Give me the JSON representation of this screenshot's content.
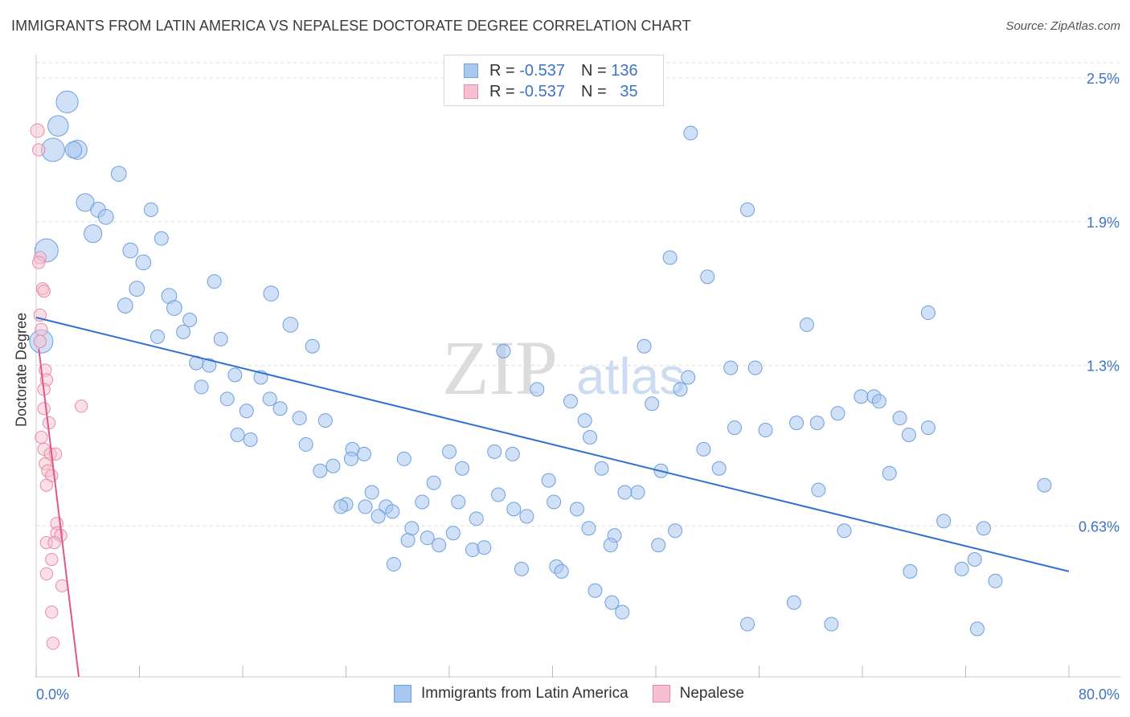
{
  "title": "IMMIGRANTS FROM LATIN AMERICA VS NEPALESE DOCTORATE DEGREE CORRELATION CHART",
  "source": "Source: ZipAtlas.com",
  "watermark": {
    "zip": "ZIP",
    "atlas": "atlas"
  },
  "legend_top": [
    {
      "r_label": "R =",
      "r_value": "-0.537",
      "n_label": "N =",
      "n_value": "136"
    },
    {
      "r_label": "R =",
      "r_value": "-0.537",
      "n_label": "N =",
      "n_value": "35"
    }
  ],
  "chart_data": {
    "type": "scatter",
    "title": "IMMIGRANTS FROM LATIN AMERICA VS NEPALESE DOCTORATE DEGREE CORRELATION CHART",
    "xlabel": "",
    "ylabel": "Doctorate Degree",
    "xlim": [
      0,
      80
    ],
    "ylim": [
      0,
      2.6
    ],
    "x_tick_labels": [
      "0.0%",
      "80.0%"
    ],
    "y_ticks": [
      0.63,
      1.3,
      1.9,
      2.5
    ],
    "y_tick_labels": [
      "0.63%",
      "1.3%",
      "1.9%",
      "2.5%"
    ],
    "grid": true,
    "legend_position": "bottom-center",
    "colors": {
      "latin_fill": "#a9c8f0",
      "latin_stroke": "#6f9fdc",
      "latin_line": "#2f6fcf",
      "nepal_fill": "#f7c0d0",
      "nepal_stroke": "#e88aa6",
      "nepal_line": "#e0578a",
      "grid": "#dddddd",
      "tick_label": "#3d74c8"
    },
    "series": [
      {
        "name": "Immigrants from Latin America",
        "r": -0.537,
        "n": 136,
        "trend": {
          "x": [
            0,
            80
          ],
          "y": [
            1.5,
            0.44
          ]
        },
        "points": [
          {
            "x": 2.4,
            "y": 2.4,
            "s": 16
          },
          {
            "x": 1.3,
            "y": 2.2,
            "s": 17
          },
          {
            "x": 1.7,
            "y": 2.3,
            "s": 15
          },
          {
            "x": 3.2,
            "y": 2.2,
            "s": 14
          },
          {
            "x": 2.9,
            "y": 2.2,
            "s": 12
          },
          {
            "x": 6.4,
            "y": 2.1,
            "s": 11
          },
          {
            "x": 3.8,
            "y": 1.98,
            "s": 13
          },
          {
            "x": 4.8,
            "y": 1.95,
            "s": 11
          },
          {
            "x": 5.4,
            "y": 1.92,
            "s": 11
          },
          {
            "x": 4.4,
            "y": 1.85,
            "s": 13
          },
          {
            "x": 8.9,
            "y": 1.95,
            "s": 10
          },
          {
            "x": 9.7,
            "y": 1.83,
            "s": 10
          },
          {
            "x": 7.3,
            "y": 1.78,
            "s": 11
          },
          {
            "x": 8.3,
            "y": 1.73,
            "s": 11
          },
          {
            "x": 0.8,
            "y": 1.78,
            "s": 17
          },
          {
            "x": 0.4,
            "y": 1.4,
            "s": 17
          },
          {
            "x": 7.8,
            "y": 1.62,
            "s": 11
          },
          {
            "x": 13.8,
            "y": 1.65,
            "s": 10
          },
          {
            "x": 18.2,
            "y": 1.6,
            "s": 11
          },
          {
            "x": 10.3,
            "y": 1.59,
            "s": 11
          },
          {
            "x": 6.9,
            "y": 1.55,
            "s": 11
          },
          {
            "x": 10.7,
            "y": 1.54,
            "s": 11
          },
          {
            "x": 11.9,
            "y": 1.49,
            "s": 10
          },
          {
            "x": 19.7,
            "y": 1.47,
            "s": 11
          },
          {
            "x": 9.4,
            "y": 1.42,
            "s": 10
          },
          {
            "x": 11.4,
            "y": 1.44,
            "s": 10
          },
          {
            "x": 14.3,
            "y": 1.41,
            "s": 10
          },
          {
            "x": 21.4,
            "y": 1.38,
            "s": 10
          },
          {
            "x": 12.4,
            "y": 1.31,
            "s": 10
          },
          {
            "x": 13.4,
            "y": 1.3,
            "s": 10
          },
          {
            "x": 15.4,
            "y": 1.26,
            "s": 10
          },
          {
            "x": 17.4,
            "y": 1.25,
            "s": 10
          },
          {
            "x": 12.8,
            "y": 1.21,
            "s": 10
          },
          {
            "x": 14.8,
            "y": 1.16,
            "s": 10
          },
          {
            "x": 18.1,
            "y": 1.16,
            "s": 10
          },
          {
            "x": 18.9,
            "y": 1.12,
            "s": 10
          },
          {
            "x": 16.3,
            "y": 1.11,
            "s": 10
          },
          {
            "x": 20.4,
            "y": 1.08,
            "s": 10
          },
          {
            "x": 22.4,
            "y": 1.07,
            "s": 10
          },
          {
            "x": 15.6,
            "y": 1.01,
            "s": 10
          },
          {
            "x": 16.6,
            "y": 0.99,
            "s": 10
          },
          {
            "x": 20.9,
            "y": 0.97,
            "s": 10
          },
          {
            "x": 24.5,
            "y": 0.95,
            "s": 10
          },
          {
            "x": 25.4,
            "y": 0.93,
            "s": 10
          },
          {
            "x": 24.4,
            "y": 0.91,
            "s": 10
          },
          {
            "x": 23.0,
            "y": 0.88,
            "s": 10
          },
          {
            "x": 22.0,
            "y": 0.86,
            "s": 10
          },
          {
            "x": 28.5,
            "y": 0.91,
            "s": 10
          },
          {
            "x": 32.0,
            "y": 0.94,
            "s": 10
          },
          {
            "x": 33.0,
            "y": 0.87,
            "s": 10
          },
          {
            "x": 35.5,
            "y": 0.94,
            "s": 10
          },
          {
            "x": 36.9,
            "y": 0.93,
            "s": 10
          },
          {
            "x": 30.8,
            "y": 0.81,
            "s": 10
          },
          {
            "x": 26.0,
            "y": 0.77,
            "s": 10
          },
          {
            "x": 24.0,
            "y": 0.72,
            "s": 10
          },
          {
            "x": 23.6,
            "y": 0.71,
            "s": 10
          },
          {
            "x": 25.5,
            "y": 0.71,
            "s": 10
          },
          {
            "x": 27.1,
            "y": 0.71,
            "s": 10
          },
          {
            "x": 27.6,
            "y": 0.69,
            "s": 10
          },
          {
            "x": 26.5,
            "y": 0.67,
            "s": 10
          },
          {
            "x": 29.9,
            "y": 0.73,
            "s": 10
          },
          {
            "x": 32.7,
            "y": 0.73,
            "s": 10
          },
          {
            "x": 35.8,
            "y": 0.76,
            "s": 10
          },
          {
            "x": 37.0,
            "y": 0.7,
            "s": 10
          },
          {
            "x": 38.0,
            "y": 0.67,
            "s": 10
          },
          {
            "x": 39.7,
            "y": 0.82,
            "s": 10
          },
          {
            "x": 40.1,
            "y": 0.73,
            "s": 10
          },
          {
            "x": 41.9,
            "y": 0.7,
            "s": 10
          },
          {
            "x": 34.1,
            "y": 0.66,
            "s": 10
          },
          {
            "x": 32.3,
            "y": 0.6,
            "s": 10
          },
          {
            "x": 29.1,
            "y": 0.62,
            "s": 10
          },
          {
            "x": 30.3,
            "y": 0.58,
            "s": 10
          },
          {
            "x": 28.8,
            "y": 0.57,
            "s": 10
          },
          {
            "x": 31.2,
            "y": 0.55,
            "s": 10
          },
          {
            "x": 33.8,
            "y": 0.53,
            "s": 10
          },
          {
            "x": 34.7,
            "y": 0.54,
            "s": 10
          },
          {
            "x": 27.7,
            "y": 0.47,
            "s": 10
          },
          {
            "x": 37.6,
            "y": 0.45,
            "s": 10
          },
          {
            "x": 40.3,
            "y": 0.46,
            "s": 10
          },
          {
            "x": 40.7,
            "y": 0.44,
            "s": 10
          },
          {
            "x": 43.3,
            "y": 0.36,
            "s": 10
          },
          {
            "x": 44.6,
            "y": 0.31,
            "s": 10
          },
          {
            "x": 45.4,
            "y": 0.27,
            "s": 10
          },
          {
            "x": 42.8,
            "y": 0.62,
            "s": 10
          },
          {
            "x": 44.8,
            "y": 0.59,
            "s": 10
          },
          {
            "x": 44.5,
            "y": 0.55,
            "s": 10
          },
          {
            "x": 43.8,
            "y": 0.87,
            "s": 10
          },
          {
            "x": 45.6,
            "y": 0.77,
            "s": 10
          },
          {
            "x": 46.6,
            "y": 0.77,
            "s": 10
          },
          {
            "x": 48.4,
            "y": 0.86,
            "s": 10
          },
          {
            "x": 49.5,
            "y": 0.61,
            "s": 10
          },
          {
            "x": 48.2,
            "y": 0.55,
            "s": 10
          },
          {
            "x": 41.4,
            "y": 1.15,
            "s": 10
          },
          {
            "x": 42.5,
            "y": 1.07,
            "s": 10
          },
          {
            "x": 42.9,
            "y": 1.0,
            "s": 10
          },
          {
            "x": 38.8,
            "y": 1.2,
            "s": 10
          },
          {
            "x": 36.2,
            "y": 1.36,
            "s": 10
          },
          {
            "x": 47.1,
            "y": 1.38,
            "s": 10
          },
          {
            "x": 47.7,
            "y": 1.14,
            "s": 10
          },
          {
            "x": 49.9,
            "y": 1.2,
            "s": 10
          },
          {
            "x": 50.5,
            "y": 1.25,
            "s": 10
          },
          {
            "x": 51.7,
            "y": 0.95,
            "s": 10
          },
          {
            "x": 52.9,
            "y": 0.87,
            "s": 10
          },
          {
            "x": 49.1,
            "y": 1.75,
            "s": 10
          },
          {
            "x": 52.0,
            "y": 1.67,
            "s": 10
          },
          {
            "x": 50.7,
            "y": 2.27,
            "s": 10
          },
          {
            "x": 55.1,
            "y": 1.95,
            "s": 10
          },
          {
            "x": 53.8,
            "y": 1.29,
            "s": 10
          },
          {
            "x": 55.7,
            "y": 1.29,
            "s": 10
          },
          {
            "x": 54.1,
            "y": 1.04,
            "s": 10
          },
          {
            "x": 56.5,
            "y": 1.03,
            "s": 10
          },
          {
            "x": 58.9,
            "y": 1.06,
            "s": 10
          },
          {
            "x": 59.7,
            "y": 1.47,
            "s": 10
          },
          {
            "x": 60.5,
            "y": 1.06,
            "s": 10
          },
          {
            "x": 62.1,
            "y": 1.1,
            "s": 10
          },
          {
            "x": 63.9,
            "y": 1.17,
            "s": 10
          },
          {
            "x": 64.9,
            "y": 1.17,
            "s": 10
          },
          {
            "x": 65.3,
            "y": 1.15,
            "s": 10
          },
          {
            "x": 66.9,
            "y": 1.08,
            "s": 10
          },
          {
            "x": 67.6,
            "y": 1.01,
            "s": 10
          },
          {
            "x": 69.1,
            "y": 1.04,
            "s": 10
          },
          {
            "x": 69.1,
            "y": 1.52,
            "s": 10
          },
          {
            "x": 66.1,
            "y": 0.85,
            "s": 10
          },
          {
            "x": 60.6,
            "y": 0.78,
            "s": 10
          },
          {
            "x": 62.6,
            "y": 0.61,
            "s": 10
          },
          {
            "x": 70.3,
            "y": 0.65,
            "s": 10
          },
          {
            "x": 73.4,
            "y": 0.62,
            "s": 10
          },
          {
            "x": 78.1,
            "y": 0.8,
            "s": 10
          },
          {
            "x": 67.7,
            "y": 0.44,
            "s": 10
          },
          {
            "x": 71.7,
            "y": 0.45,
            "s": 10
          },
          {
            "x": 72.7,
            "y": 0.49,
            "s": 10
          },
          {
            "x": 74.3,
            "y": 0.4,
            "s": 10
          },
          {
            "x": 58.7,
            "y": 0.31,
            "s": 10
          },
          {
            "x": 55.1,
            "y": 0.22,
            "s": 10
          },
          {
            "x": 61.6,
            "y": 0.22,
            "s": 10
          },
          {
            "x": 72.9,
            "y": 0.2,
            "s": 10
          }
        ]
      },
      {
        "name": "Nepalese",
        "r": -0.537,
        "n": 35,
        "trend": {
          "x": [
            0.2,
            3.3
          ],
          "y": [
            1.37,
            0.0
          ]
        },
        "points": [
          {
            "x": 0.1,
            "y": 2.28,
            "s": 10
          },
          {
            "x": 0.2,
            "y": 2.2,
            "s": 9
          },
          {
            "x": 0.3,
            "y": 1.75,
            "s": 9
          },
          {
            "x": 0.2,
            "y": 1.73,
            "s": 9
          },
          {
            "x": 0.5,
            "y": 1.62,
            "s": 9
          },
          {
            "x": 0.6,
            "y": 1.61,
            "s": 9
          },
          {
            "x": 0.3,
            "y": 1.51,
            "s": 9
          },
          {
            "x": 0.4,
            "y": 1.45,
            "s": 9
          },
          {
            "x": 0.3,
            "y": 1.4,
            "s": 9
          },
          {
            "x": 0.7,
            "y": 1.28,
            "s": 9
          },
          {
            "x": 0.8,
            "y": 1.24,
            "s": 9
          },
          {
            "x": 0.6,
            "y": 1.2,
            "s": 9
          },
          {
            "x": 3.5,
            "y": 1.13,
            "s": 9
          },
          {
            "x": 0.6,
            "y": 1.12,
            "s": 9
          },
          {
            "x": 1.0,
            "y": 1.06,
            "s": 9
          },
          {
            "x": 0.4,
            "y": 1.0,
            "s": 9
          },
          {
            "x": 0.6,
            "y": 0.95,
            "s": 9
          },
          {
            "x": 1.1,
            "y": 0.93,
            "s": 9
          },
          {
            "x": 1.5,
            "y": 0.93,
            "s": 9
          },
          {
            "x": 0.7,
            "y": 0.89,
            "s": 9
          },
          {
            "x": 0.9,
            "y": 0.86,
            "s": 9
          },
          {
            "x": 1.2,
            "y": 0.84,
            "s": 9
          },
          {
            "x": 0.8,
            "y": 0.8,
            "s": 9
          },
          {
            "x": 1.6,
            "y": 0.64,
            "s": 9
          },
          {
            "x": 1.6,
            "y": 0.6,
            "s": 9
          },
          {
            "x": 1.9,
            "y": 0.59,
            "s": 9
          },
          {
            "x": 0.8,
            "y": 0.56,
            "s": 9
          },
          {
            "x": 1.4,
            "y": 0.56,
            "s": 9
          },
          {
            "x": 1.2,
            "y": 0.49,
            "s": 9
          },
          {
            "x": 0.8,
            "y": 0.43,
            "s": 9
          },
          {
            "x": 2.0,
            "y": 0.38,
            "s": 9
          },
          {
            "x": 1.2,
            "y": 0.27,
            "s": 9
          },
          {
            "x": 1.3,
            "y": 0.14,
            "s": 9
          }
        ]
      }
    ]
  },
  "bottom_legend": [
    "Immigrants from Latin America",
    "Nepalese"
  ]
}
